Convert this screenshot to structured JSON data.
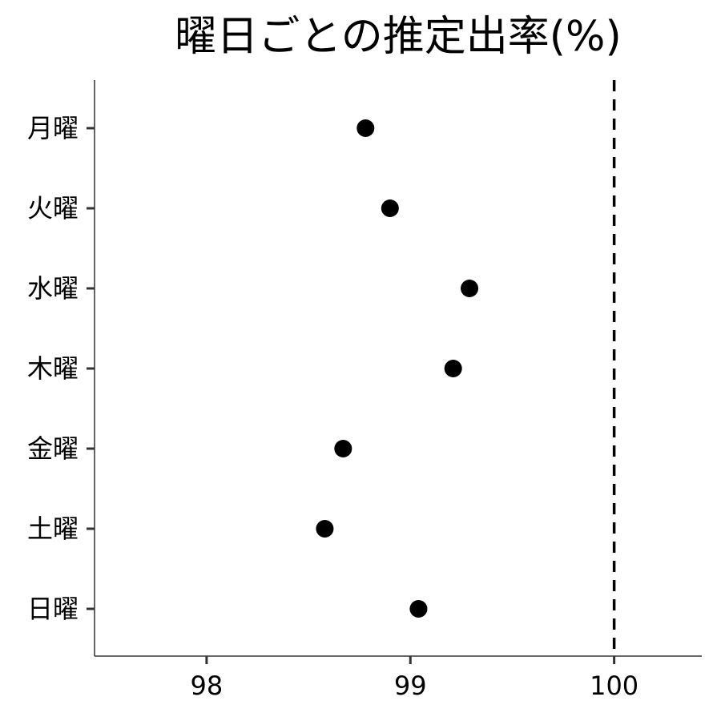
{
  "chart_data": {
    "type": "scatter",
    "title": "曜日ごとの推定出率(%)",
    "xlabel": "",
    "ylabel": "",
    "categories": [
      "月曜",
      "火曜",
      "水曜",
      "木曜",
      "金曜",
      "土曜",
      "日曜"
    ],
    "values": [
      98.78,
      98.9,
      99.29,
      99.21,
      98.67,
      98.58,
      99.04
    ],
    "xlim": [
      97.45,
      100.43
    ],
    "xticks": [
      "98",
      "99",
      "100"
    ],
    "reference_line": {
      "x": 100,
      "style": "dashed"
    },
    "grid": false,
    "legend": "none",
    "colors": {
      "point": "#000000",
      "axis": "#333333",
      "reference_line": "#000000"
    }
  }
}
